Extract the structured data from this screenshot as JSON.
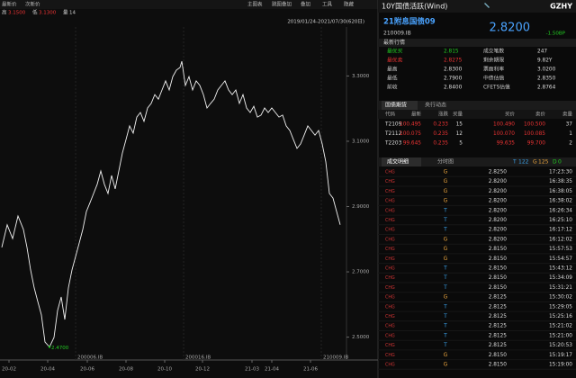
{
  "toolbar": {
    "left": [
      "最新价",
      "次新价"
    ],
    "menu": [
      "主图表",
      "跳图叠加",
      "叠加",
      "工具",
      "隐藏"
    ]
  },
  "stats": [
    {
      "label": "高",
      "value": "3.1500"
    },
    {
      "label": "低",
      "value": "3.1300"
    },
    {
      "label": "量",
      "value": "14"
    }
  ],
  "chart_data": {
    "type": "line",
    "subtitle": "2019/01/24-2021/07/30(620日)",
    "x": [
      2,
      8,
      14,
      20,
      26,
      30,
      34,
      38,
      42,
      46,
      50,
      55,
      60,
      64,
      68,
      72,
      76,
      80,
      84,
      88,
      92,
      96,
      100,
      104,
      108,
      112,
      116,
      120,
      124,
      128,
      132,
      136,
      140,
      144,
      148,
      152,
      156,
      160,
      164,
      168,
      172,
      176,
      180,
      184,
      188,
      192,
      196,
      200,
      202,
      206,
      210,
      214,
      218,
      222,
      226,
      230,
      234,
      238,
      242,
      246,
      250,
      254,
      258,
      262,
      266,
      270,
      274,
      278,
      282,
      286,
      290,
      294,
      298,
      302,
      306,
      310,
      314,
      318,
      322,
      326,
      330,
      334,
      338,
      342,
      346,
      350,
      354,
      358,
      362,
      366,
      370,
      374,
      378
    ],
    "series": [
      {
        "color": "#f2f2f2",
        "values": [
          2.775,
          2.844,
          2.802,
          2.871,
          2.83,
          2.775,
          2.706,
          2.651,
          2.609,
          2.568,
          2.485,
          2.47,
          2.499,
          2.582,
          2.623,
          2.554,
          2.651,
          2.706,
          2.747,
          2.788,
          2.83,
          2.885,
          2.912,
          2.94,
          2.968,
          3.009,
          2.968,
          2.94,
          2.995,
          2.954,
          3.009,
          3.064,
          3.105,
          3.147,
          3.125,
          3.174,
          3.188,
          3.161,
          3.202,
          3.216,
          3.243,
          3.229,
          3.257,
          3.285,
          3.257,
          3.298,
          3.318,
          3.326,
          3.345,
          3.271,
          3.298,
          3.257,
          3.285,
          3.271,
          3.243,
          3.202,
          3.216,
          3.229,
          3.257,
          3.271,
          3.285,
          3.257,
          3.243,
          3.257,
          3.216,
          3.243,
          3.202,
          3.188,
          3.207,
          3.174,
          3.18,
          3.202,
          3.188,
          3.202,
          3.188,
          3.174,
          3.18,
          3.147,
          3.133,
          3.105,
          3.078,
          3.092,
          3.119,
          3.147,
          3.133,
          3.119,
          3.133,
          3.092,
          3.037,
          2.94,
          2.926,
          2.885,
          2.844
        ]
      }
    ],
    "xlim": [
      0,
      385
    ],
    "ylim": [
      2.43,
      3.45
    ],
    "yticks": [
      {
        "value": 2.5,
        "label": "2.5000"
      },
      {
        "value": 2.7,
        "label": "2.7000"
      },
      {
        "value": 2.9,
        "label": "2.9000"
      },
      {
        "value": 3.1,
        "label": "3.1000"
      },
      {
        "value": 3.3,
        "label": "3.3000"
      }
    ],
    "xticks": [
      {
        "value": 10,
        "label": "20-02"
      },
      {
        "value": 53,
        "label": "20-04"
      },
      {
        "value": 97,
        "label": "20-06"
      },
      {
        "value": 140,
        "label": "20-08"
      },
      {
        "value": 183,
        "label": "20-10"
      },
      {
        "value": 225,
        "label": "20-12"
      },
      {
        "value": 280,
        "label": "21-03"
      },
      {
        "value": 302,
        "label": "21-04"
      },
      {
        "value": 345,
        "label": "21-06"
      }
    ],
    "min_marker": {
      "x": 55,
      "value": 2.47,
      "label": "2.4700"
    },
    "contracts": [
      {
        "x": 84,
        "label": "200006.IB"
      },
      {
        "x": 204,
        "label": "200016.IB"
      },
      {
        "x": 357,
        "label": "210009.IB"
      }
    ]
  },
  "quote": {
    "title": "10Y国债活跃(Wind)",
    "badge": "GZHY",
    "bond_name": "21附息国债09",
    "bond_code": "210009.IB",
    "price": "2.8200",
    "change": "-1.50BP",
    "section": "最新行情",
    "rows": [
      [
        "最优买",
        "2.815",
        "成交笔数",
        "247"
      ],
      [
        "最优卖",
        "2.8275",
        "剩余期限",
        "9.82Y"
      ],
      [
        "最高",
        "2.8300",
        "票面利率",
        "3.0200"
      ],
      [
        "最低",
        "2.7900",
        "中债估值",
        "2.8350"
      ],
      [
        "前收",
        "2.8400",
        "CFETS估值",
        "2.8764"
      ]
    ]
  },
  "futures": {
    "tabs": [
      "国债期货",
      "央行动态"
    ],
    "columns": [
      "代码",
      "最新",
      "涨跌",
      "买量",
      "买价",
      "卖价",
      "卖量"
    ],
    "rows": [
      [
        "T2109",
        "100.495",
        "0.233",
        "15",
        "100.490",
        "100.500",
        "37"
      ],
      [
        "T2112",
        "100.075",
        "0.235",
        "12",
        "100.070",
        "100.085",
        "1"
      ],
      [
        "T2203",
        "99.645",
        "0.235",
        "5",
        "99.635",
        "99.700",
        "2"
      ]
    ]
  },
  "trades": {
    "tabs": [
      "成交明细",
      "分时图"
    ],
    "counts": [
      {
        "label": "T",
        "value": "122"
      },
      {
        "label": "G",
        "value": "125"
      },
      {
        "label": "D",
        "value": "0"
      }
    ],
    "rows": [
      [
        "CHG",
        "G",
        "2.8250",
        "17:23:30"
      ],
      [
        "CHG",
        "G",
        "2.8200",
        "16:38:35"
      ],
      [
        "CHG",
        "G",
        "2.8200",
        "16:38:05"
      ],
      [
        "CHG",
        "G",
        "2.8200",
        "16:38:02"
      ],
      [
        "CHG",
        "T",
        "2.8200",
        "16:26:34"
      ],
      [
        "CHG",
        "T",
        "2.8200",
        "16:25:10"
      ],
      [
        "CHG",
        "T",
        "2.8200",
        "16:17:12"
      ],
      [
        "CHG",
        "G",
        "2.8200",
        "16:12:02"
      ],
      [
        "CHG",
        "G",
        "2.8150",
        "15:57:53"
      ],
      [
        "CHG",
        "G",
        "2.8150",
        "15:54:57"
      ],
      [
        "CHG",
        "T",
        "2.8150",
        "15:43:12"
      ],
      [
        "CHG",
        "T",
        "2.8150",
        "15:34:09"
      ],
      [
        "CHG",
        "T",
        "2.8150",
        "15:31:21"
      ],
      [
        "CHG",
        "G",
        "2.8125",
        "15:30:02"
      ],
      [
        "CHG",
        "T",
        "2.8125",
        "15:29:05"
      ],
      [
        "CHG",
        "T",
        "2.8125",
        "15:25:16"
      ],
      [
        "CHG",
        "T",
        "2.8125",
        "15:21:02"
      ],
      [
        "CHG",
        "T",
        "2.8125",
        "15:21:00"
      ],
      [
        "CHG",
        "T",
        "2.8125",
        "15:20:53"
      ],
      [
        "CHG",
        "G",
        "2.8150",
        "15:19:17"
      ],
      [
        "CHG",
        "G",
        "2.8150",
        "15:19:00"
      ]
    ]
  }
}
